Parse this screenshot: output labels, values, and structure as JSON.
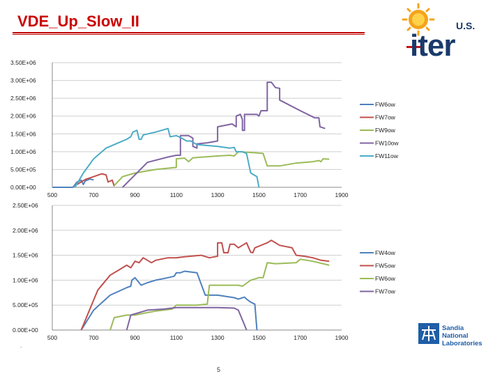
{
  "slide": {
    "title": "VDE_Up_Slow_II",
    "page_number": "5",
    "stray_mark": "-"
  },
  "logos": {
    "iter": {
      "name": "iter-logo",
      "text": "iter",
      "us": "U.S.",
      "color": "#1a3a6b",
      "sun": "#f4a41b"
    },
    "sandia": {
      "name": "sandia-logo",
      "lines": [
        "Sandia",
        "National",
        "Laboratories"
      ],
      "color": "#1f5ea8"
    }
  },
  "chart_data": [
    {
      "type": "line",
      "title": "",
      "xlabel": "",
      "ylabel": "",
      "xlim": [
        500,
        1900
      ],
      "ylim": [
        0,
        3500000
      ],
      "xticks": [
        "500",
        "700",
        "900",
        "1100",
        "1300",
        "1500",
        "1700",
        "1900"
      ],
      "yticks": [
        "0.00E+00",
        "5.00E+05",
        "1.00E+06",
        "1.50E+06",
        "2.00E+06",
        "2.50E+06",
        "3.00E+06",
        "3.50E+06"
      ],
      "grid": true,
      "legend_position": "right",
      "series": [
        {
          "name": "FW6ow",
          "color": "#4f81bd",
          "points": [
            [
              500,
              0
            ],
            [
              600,
              0
            ],
            [
              620,
              150000
            ],
            [
              640,
              200000
            ],
            [
              650,
              80000
            ],
            [
              660,
              180000
            ],
            [
              680,
              230000
            ],
            [
              700,
              210000
            ]
          ]
        },
        {
          "name": "FW7ow",
          "color": "#c0504d",
          "points": [
            [
              620,
              80000
            ],
            [
              660,
              220000
            ],
            [
              700,
              300000
            ],
            [
              740,
              380000
            ],
            [
              760,
              350000
            ],
            [
              770,
              150000
            ],
            [
              790,
              200000
            ],
            [
              800,
              30000
            ]
          ]
        },
        {
          "name": "FW9ow",
          "color": "#9bbb59",
          "points": [
            [
              800,
              50000
            ],
            [
              840,
              300000
            ],
            [
              900,
              400000
            ],
            [
              1000,
              500000
            ],
            [
              1100,
              560000
            ],
            [
              1100,
              800000
            ],
            [
              1140,
              820000
            ],
            [
              1160,
              720000
            ],
            [
              1180,
              830000
            ],
            [
              1300,
              880000
            ],
            [
              1360,
              900000
            ],
            [
              1380,
              880000
            ],
            [
              1400,
              1000000
            ],
            [
              1480,
              970000
            ],
            [
              1520,
              950000
            ],
            [
              1540,
              600000
            ],
            [
              1600,
              600000
            ],
            [
              1680,
              680000
            ],
            [
              1760,
              720000
            ],
            [
              1790,
              750000
            ],
            [
              1800,
              720000
            ],
            [
              1810,
              800000
            ],
            [
              1840,
              790000
            ]
          ]
        },
        {
          "name": "FW10ow",
          "color": "#8064a2",
          "points": [
            [
              840,
              0
            ],
            [
              960,
              700000
            ],
            [
              1060,
              850000
            ],
            [
              1100,
              900000
            ],
            [
              1120,
              900000
            ],
            [
              1120,
              1450000
            ],
            [
              1160,
              1450000
            ],
            [
              1180,
              1380000
            ],
            [
              1180,
              1150000
            ],
            [
              1200,
              1100000
            ],
            [
              1200,
              1220000
            ],
            [
              1250,
              1250000
            ],
            [
              1300,
              1300000
            ],
            [
              1300,
              1700000
            ],
            [
              1370,
              1780000
            ],
            [
              1390,
              1700000
            ],
            [
              1390,
              2000000
            ],
            [
              1410,
              2050000
            ],
            [
              1420,
              1900000
            ],
            [
              1420,
              1600000
            ],
            [
              1430,
              1600000
            ],
            [
              1430,
              2050000
            ],
            [
              1490,
              2050000
            ],
            [
              1500,
              2000000
            ],
            [
              1510,
              2150000
            ],
            [
              1540,
              2150000
            ],
            [
              1540,
              2950000
            ],
            [
              1560,
              2950000
            ],
            [
              1580,
              2800000
            ],
            [
              1600,
              2780000
            ],
            [
              1600,
              2450000
            ],
            [
              1700,
              2150000
            ],
            [
              1770,
              1950000
            ],
            [
              1790,
              1950000
            ],
            [
              1795,
              1700000
            ],
            [
              1820,
              1650000
            ]
          ]
        },
        {
          "name": "FW11ow",
          "color": "#4bacc6",
          "points": [
            [
              610,
              0
            ],
            [
              650,
              400000
            ],
            [
              700,
              800000
            ],
            [
              760,
              1100000
            ],
            [
              820,
              1250000
            ],
            [
              860,
              1350000
            ],
            [
              880,
              1420000
            ],
            [
              890,
              1550000
            ],
            [
              910,
              1600000
            ],
            [
              920,
              1350000
            ],
            [
              930,
              1350000
            ],
            [
              940,
              1470000
            ],
            [
              1000,
              1550000
            ],
            [
              1060,
              1650000
            ],
            [
              1070,
              1420000
            ],
            [
              1100,
              1450000
            ],
            [
              1120,
              1400000
            ],
            [
              1150,
              1300000
            ],
            [
              1170,
              1300000
            ],
            [
              1200,
              1200000
            ],
            [
              1300,
              1150000
            ],
            [
              1360,
              1100000
            ],
            [
              1380,
              1120000
            ],
            [
              1390,
              1000000
            ],
            [
              1420,
              1000000
            ],
            [
              1440,
              950000
            ],
            [
              1460,
              400000
            ],
            [
              1490,
              300000
            ],
            [
              1500,
              0
            ]
          ]
        }
      ]
    },
    {
      "type": "line",
      "title": "",
      "xlabel": "",
      "ylabel": "",
      "xlim": [
        500,
        1900
      ],
      "ylim": [
        0,
        2500000
      ],
      "xticks": [
        "500",
        "700",
        "900",
        "1100",
        "1300",
        "1500",
        "1700",
        "1900"
      ],
      "yticks": [
        "0.00E+00",
        "5.00E+05",
        "1.00E+06",
        "1.50E+06",
        "2.00E+06",
        "2.50E+06"
      ],
      "grid": true,
      "legend_position": "right",
      "series": [
        {
          "name": "FW4ow",
          "color": "#4f81bd",
          "points": [
            [
              640,
              0
            ],
            [
              700,
              400000
            ],
            [
              780,
              700000
            ],
            [
              860,
              850000
            ],
            [
              880,
              880000
            ],
            [
              885,
              1000000
            ],
            [
              900,
              1050000
            ],
            [
              920,
              950000
            ],
            [
              930,
              900000
            ],
            [
              960,
              950000
            ],
            [
              1000,
              1000000
            ],
            [
              1060,
              1050000
            ],
            [
              1090,
              1080000
            ],
            [
              1100,
              1150000
            ],
            [
              1120,
              1150000
            ],
            [
              1140,
              1180000
            ],
            [
              1200,
              1150000
            ],
            [
              1240,
              700000
            ],
            [
              1300,
              700000
            ],
            [
              1380,
              650000
            ],
            [
              1400,
              620000
            ],
            [
              1430,
              660000
            ],
            [
              1440,
              620000
            ],
            [
              1460,
              560000
            ],
            [
              1480,
              520000
            ],
            [
              1490,
              0
            ]
          ]
        },
        {
          "name": "FW5ow",
          "color": "#c0504d",
          "points": [
            [
              640,
              0
            ],
            [
              660,
              200000
            ],
            [
              690,
              500000
            ],
            [
              720,
              800000
            ],
            [
              780,
              1100000
            ],
            [
              820,
              1200000
            ],
            [
              860,
              1300000
            ],
            [
              880,
              1250000
            ],
            [
              900,
              1380000
            ],
            [
              920,
              1350000
            ],
            [
              940,
              1450000
            ],
            [
              980,
              1350000
            ],
            [
              1000,
              1400000
            ],
            [
              1060,
              1450000
            ],
            [
              1100,
              1450000
            ],
            [
              1140,
              1470000
            ],
            [
              1220,
              1500000
            ],
            [
              1260,
              1450000
            ],
            [
              1300,
              1480000
            ],
            [
              1300,
              1750000
            ],
            [
              1320,
              1750000
            ],
            [
              1330,
              1550000
            ],
            [
              1350,
              1550000
            ],
            [
              1360,
              1720000
            ],
            [
              1380,
              1720000
            ],
            [
              1400,
              1650000
            ],
            [
              1420,
              1700000
            ],
            [
              1440,
              1750000
            ],
            [
              1460,
              1560000
            ],
            [
              1470,
              1550000
            ],
            [
              1480,
              1650000
            ],
            [
              1540,
              1750000
            ],
            [
              1560,
              1800000
            ],
            [
              1600,
              1700000
            ],
            [
              1660,
              1650000
            ],
            [
              1680,
              1500000
            ],
            [
              1720,
              1480000
            ],
            [
              1760,
              1450000
            ],
            [
              1800,
              1400000
            ],
            [
              1840,
              1380000
            ]
          ]
        },
        {
          "name": "FW6ow",
          "color": "#9bbb59",
          "points": [
            [
              780,
              0
            ],
            [
              800,
              250000
            ],
            [
              860,
              300000
            ],
            [
              900,
              300000
            ],
            [
              960,
              350000
            ],
            [
              1000,
              380000
            ],
            [
              1080,
              420000
            ],
            [
              1100,
              500000
            ],
            [
              1200,
              500000
            ],
            [
              1250,
              520000
            ],
            [
              1260,
              900000
            ],
            [
              1300,
              900000
            ],
            [
              1400,
              900000
            ],
            [
              1420,
              880000
            ],
            [
              1460,
              1000000
            ],
            [
              1500,
              1050000
            ],
            [
              1520,
              1050000
            ],
            [
              1540,
              1350000
            ],
            [
              1580,
              1330000
            ],
            [
              1680,
              1350000
            ],
            [
              1700,
              1420000
            ],
            [
              1760,
              1380000
            ],
            [
              1840,
              1300000
            ]
          ]
        },
        {
          "name": "FW7ow",
          "color": "#8064a2",
          "points": [
            [
              860,
              0
            ],
            [
              880,
              300000
            ],
            [
              960,
              400000
            ],
            [
              1040,
              420000
            ],
            [
              1100,
              450000
            ],
            [
              1200,
              450000
            ],
            [
              1300,
              450000
            ],
            [
              1380,
              440000
            ],
            [
              1400,
              400000
            ],
            [
              1430,
              100000
            ],
            [
              1440,
              0
            ]
          ]
        }
      ]
    }
  ]
}
